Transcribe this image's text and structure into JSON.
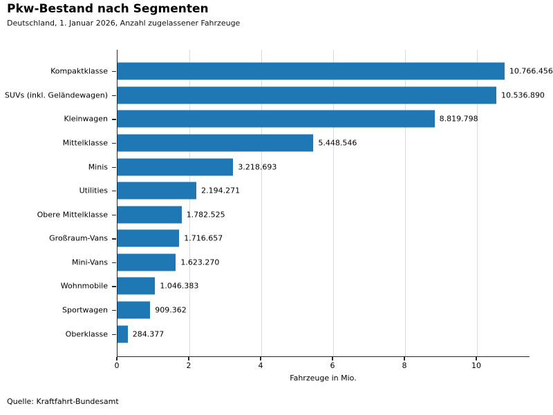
{
  "page": {
    "background": "#ffffff"
  },
  "chart_data": {
    "type": "bar",
    "orientation": "horizontal",
    "title": "Pkw-Bestand nach Segmenten",
    "subtitle": "Deutschland, 1. Januar 2026, Anzahl zugelassener Fahrzeuge",
    "source": "Quelle: Kraftfahrt-Bundesamt",
    "xlabel": "Fahrzeuge in Mio.",
    "categories": [
      "Kompaktklasse",
      "SUVs (inkl. Geländewagen)",
      "Kleinwagen",
      "Mittelklasse",
      "Minis",
      "Utilities",
      "Obere Mittelklasse",
      "Großraum-Vans",
      "Mini-Vans",
      "Wohnmobile",
      "Sportwagen",
      "Oberklasse"
    ],
    "values": [
      10766456,
      10536890,
      8819798,
      5448546,
      3218693,
      2194271,
      1782525,
      1716657,
      1623270,
      1046383,
      909362,
      284377
    ],
    "value_labels": [
      "10.766.456",
      "10.536.890",
      "8.819.798",
      "5.448.546",
      "3.218.693",
      "2.194.271",
      "1.782.525",
      "1.716.657",
      "1.623.270",
      "1.046.383",
      "909.362",
      "284.377"
    ],
    "x_ticks": [
      {
        "value": 0,
        "label": "0"
      },
      {
        "value": 2,
        "label": "2"
      },
      {
        "value": 4,
        "label": "4"
      },
      {
        "value": 6,
        "label": "6"
      },
      {
        "value": 8,
        "label": "8"
      },
      {
        "value": 10,
        "label": "10"
      }
    ],
    "xlim": [
      0,
      11.48
    ],
    "unit_divisor": 1000000,
    "grid": true,
    "legend": false,
    "bar_color": "#1f77b4",
    "gridline_color": "#dcdcdc",
    "axis_color": "#262626"
  }
}
